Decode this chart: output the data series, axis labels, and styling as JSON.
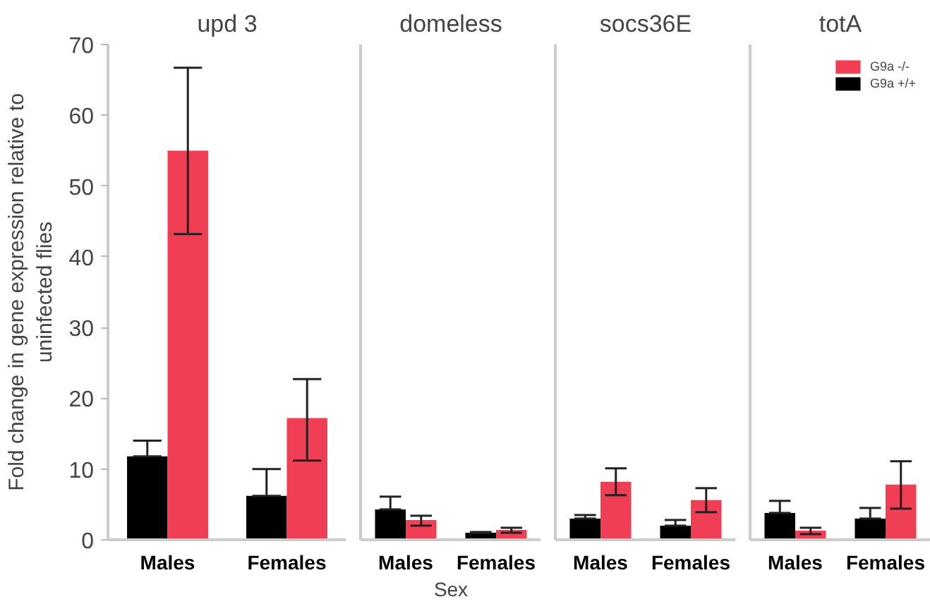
{
  "chart_data": [
    {
      "type": "bar",
      "title": "upd 3",
      "ylabel": "Fold change in gene expression relative to uninfected flies",
      "categories": [
        "Males",
        "Females"
      ],
      "ylim": [
        0,
        70
      ],
      "yticks": [
        0,
        10,
        20,
        30,
        40,
        50,
        60,
        70
      ],
      "grid": false,
      "legend": false,
      "series": [
        {
          "color": "#000000",
          "values": [
            11.8,
            6.2
          ],
          "errors": [
            [
              11.8,
              14
            ],
            [
              6.2,
              10
            ]
          ]
        },
        {
          "color": "#f03e55",
          "values": [
            55,
            17.2
          ],
          "errors": [
            [
              43.2,
              66.7
            ],
            [
              11.2,
              22.7
            ]
          ]
        }
      ]
    },
    {
      "type": "bar",
      "title": "domeless",
      "xlabel": "Sex",
      "categories": [
        "Males",
        "Females"
      ],
      "ylim": [
        0,
        70
      ],
      "tick_labels": "x",
      "grid": false,
      "legend": false,
      "series": [
        {
          "color": "#000000",
          "values": [
            4.3,
            1.0
          ],
          "errors": [
            [
              4.3,
              6.1
            ],
            [
              1.0,
              1.1
            ]
          ]
        },
        {
          "color": "#f03e55",
          "values": [
            2.8,
            1.4
          ],
          "errors": [
            [
              2.0,
              3.4
            ],
            [
              1.0,
              1.7
            ]
          ]
        }
      ]
    },
    {
      "type": "bar",
      "title": "socs36E",
      "categories": [
        "Males",
        "Females"
      ],
      "ylim": [
        0,
        70
      ],
      "tick_labels": "x",
      "grid": false,
      "legend": false,
      "series": [
        {
          "color": "#000000",
          "values": [
            3.0,
            2.0
          ],
          "errors": [
            [
              3.0,
              3.5
            ],
            [
              2.0,
              2.8
            ]
          ]
        },
        {
          "color": "#f03e55",
          "values": [
            8.2,
            5.6
          ],
          "errors": [
            [
              6.3,
              10.1
            ],
            [
              3.9,
              7.3
            ]
          ]
        }
      ]
    },
    {
      "type": "bar",
      "title": "totA",
      "categories": [
        "Males",
        "Females"
      ],
      "ylim": [
        0,
        70
      ],
      "tick_labels": "x",
      "grid": false,
      "legend": "top right",
      "series": [
        {
          "name": "G9a +/+",
          "color": "#000000",
          "values": [
            3.8,
            3.0
          ],
          "errors": [
            [
              3.8,
              5.5
            ],
            [
              3.0,
              4.5
            ]
          ]
        },
        {
          "name": "G9a -/-",
          "color": "#f03e55",
          "values": [
            1.3,
            7.8
          ],
          "errors": [
            [
              0.8,
              1.7
            ],
            [
              4.4,
              11.1
            ]
          ]
        }
      ]
    }
  ]
}
